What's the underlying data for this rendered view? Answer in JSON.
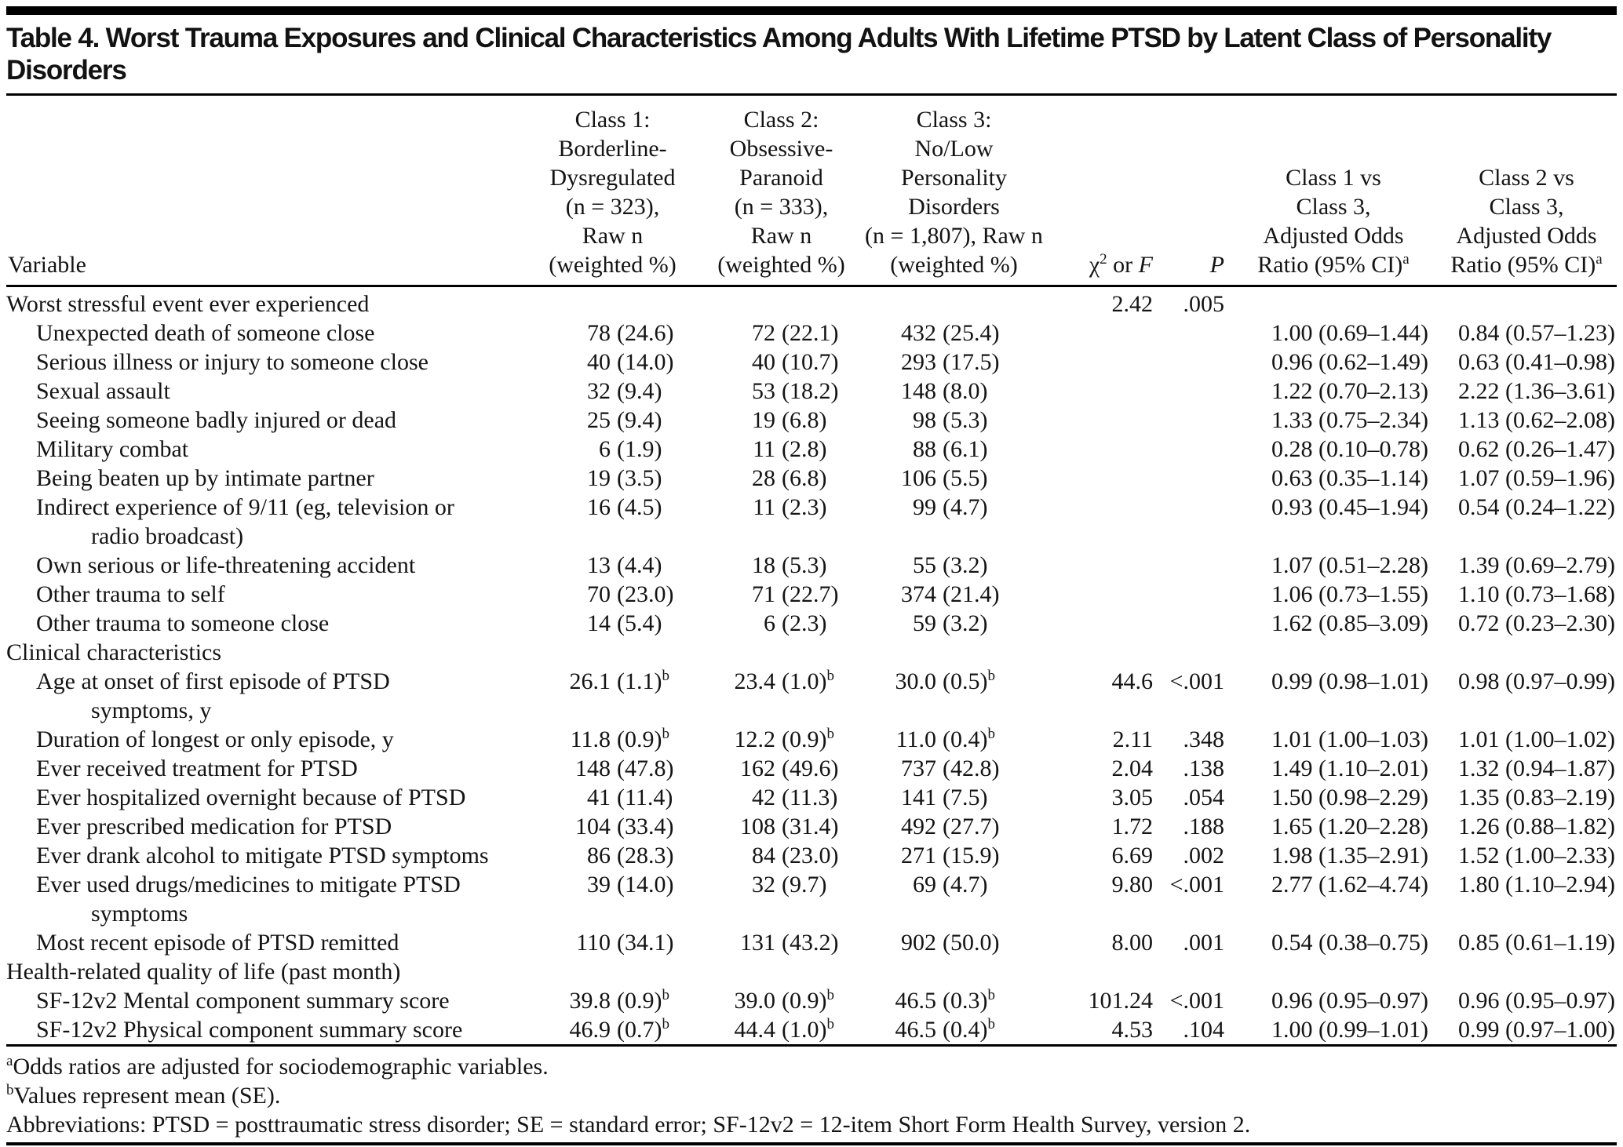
{
  "title": "Table 4. Worst Trauma Exposures and Clinical Characteristics Among Adults With Lifetime PTSD by Latent Class of Personality Disorders",
  "colors": {
    "rule": "#000000",
    "text": "#141414",
    "background": "#ffffff"
  },
  "header": {
    "variable": "Variable",
    "class1_lines": [
      "Class 1:",
      "Borderline-",
      "Dysregulated",
      "(n = 323),",
      "Raw n",
      "(weighted %)"
    ],
    "class2_lines": [
      "Class 2:",
      "Obsessive-",
      "Paranoid",
      "(n = 333),",
      "Raw n",
      "(weighted %)"
    ],
    "class3_lines": [
      "Class 3:",
      "No/Low",
      "Personality",
      "Disorders",
      "(n = 1,807), Raw n",
      "(weighted %)"
    ],
    "chi": {
      "base": "χ",
      "sup": "2",
      "rest": " or ",
      "f": "F"
    },
    "p": "P",
    "or1_lines": [
      "Class 1 vs",
      "Class 3,",
      "Adjusted Odds",
      "Ratio (95% CI)"
    ],
    "or2_lines": [
      "Class 2 vs",
      "Class 3,",
      "Adjusted Odds",
      "Ratio (95% CI)"
    ],
    "or_sup": "a"
  },
  "rows": [
    {
      "label": "Worst stressful event ever experienced",
      "indent": 0,
      "chi": "2.42",
      "p": ".005"
    },
    {
      "label": "Unexpected death of someone close",
      "indent": 1,
      "c1": [
        "78",
        "(24.6)"
      ],
      "c2": [
        "72",
        "(22.1)"
      ],
      "c3": [
        "432",
        "(25.4)"
      ],
      "or1": "1.00 (0.69–1.44)",
      "or2": "0.84 (0.57–1.23)"
    },
    {
      "label": "Serious illness or injury to someone close",
      "indent": 1,
      "c1": [
        "40",
        "(14.0)"
      ],
      "c2": [
        "40",
        "(10.7)"
      ],
      "c3": [
        "293",
        "(17.5)"
      ],
      "or1": "0.96 (0.62–1.49)",
      "or2": "0.63 (0.41–0.98)"
    },
    {
      "label": "Sexual assault",
      "indent": 1,
      "c1": [
        "32",
        "(9.4)"
      ],
      "c2": [
        "53",
        "(18.2)"
      ],
      "c3": [
        "148",
        "(8.0)"
      ],
      "or1": "1.22 (0.70–2.13)",
      "or2": "2.22 (1.36–3.61)"
    },
    {
      "label": "Seeing someone badly injured or dead",
      "indent": 1,
      "c1": [
        "25",
        "(9.4)"
      ],
      "c2": [
        "19",
        "(6.8)"
      ],
      "c3": [
        "98",
        "(5.3)"
      ],
      "or1": "1.33 (0.75–2.34)",
      "or2": "1.13 (0.62–2.08)"
    },
    {
      "label": "Military combat",
      "indent": 1,
      "c1": [
        "6",
        "(1.9)"
      ],
      "c2": [
        "11",
        "(2.8)"
      ],
      "c3": [
        "88",
        "(6.1)"
      ],
      "or1": "0.28 (0.10–0.78)",
      "or2": "0.62 (0.26–1.47)"
    },
    {
      "label": "Being beaten up by intimate partner",
      "indent": 1,
      "c1": [
        "19",
        "(3.5)"
      ],
      "c2": [
        "28",
        "(6.8)"
      ],
      "c3": [
        "106",
        "(5.5)"
      ],
      "or1": "0.63 (0.35–1.14)",
      "or2": "1.07 (0.59–1.96)"
    },
    {
      "label": "Indirect experience of 9/11 (eg, television or",
      "label2": "radio broadcast)",
      "indent": 1,
      "c1": [
        "16",
        "(4.5)"
      ],
      "c2": [
        "11",
        "(2.3)"
      ],
      "c3": [
        "99",
        "(4.7)"
      ],
      "or1": "0.93 (0.45–1.94)",
      "or2": "0.54 (0.24–1.22)"
    },
    {
      "label": "Own serious or life-threatening accident",
      "indent": 1,
      "c1": [
        "13",
        "(4.4)"
      ],
      "c2": [
        "18",
        "(5.3)"
      ],
      "c3": [
        "55",
        "(3.2)"
      ],
      "or1": "1.07 (0.51–2.28)",
      "or2": "1.39 (0.69–2.79)"
    },
    {
      "label": "Other trauma to self",
      "indent": 1,
      "c1": [
        "70",
        "(23.0)"
      ],
      "c2": [
        "71",
        "(22.7)"
      ],
      "c3": [
        "374",
        "(21.4)"
      ],
      "or1": "1.06 (0.73–1.55)",
      "or2": "1.10 (0.73–1.68)"
    },
    {
      "label": "Other trauma to someone close",
      "indent": 1,
      "c1": [
        "14",
        "(5.4)"
      ],
      "c2": [
        "6",
        "(2.3)"
      ],
      "c3": [
        "59",
        "(3.2)"
      ],
      "or1": "1.62 (0.85–3.09)",
      "or2": "0.72 (0.23–2.30)"
    },
    {
      "label": "Clinical characteristics",
      "indent": 0
    },
    {
      "label": "Age at onset of first episode of PTSD",
      "label2": "symptoms, y",
      "indent": 1,
      "sup": "b",
      "c1": [
        "26.1",
        "(1.1)"
      ],
      "c2": [
        "23.4",
        "(1.0)"
      ],
      "c3": [
        "30.0",
        "(0.5)"
      ],
      "chi": "44.6",
      "p": "<.001",
      "or1": "0.99 (0.98–1.01)",
      "or2": "0.98 (0.97–0.99)"
    },
    {
      "label": "Duration of longest or only episode, y",
      "indent": 1,
      "sup": "b",
      "c1": [
        "11.8",
        "(0.9)"
      ],
      "c2": [
        "12.2",
        "(0.9)"
      ],
      "c3": [
        "11.0",
        "(0.4)"
      ],
      "chi": "2.11",
      "p": ".348",
      "or1": "1.01 (1.00–1.03)",
      "or2": "1.01 (1.00–1.02)"
    },
    {
      "label": "Ever received treatment for PTSD",
      "indent": 1,
      "c1": [
        "148",
        "(47.8)"
      ],
      "c2": [
        "162",
        "(49.6)"
      ],
      "c3": [
        "737",
        "(42.8)"
      ],
      "chi": "2.04",
      "p": ".138",
      "or1": "1.49 (1.10–2.01)",
      "or2": "1.32 (0.94–1.87)"
    },
    {
      "label": "Ever hospitalized overnight because of PTSD",
      "indent": 1,
      "c1": [
        "41",
        "(11.4)"
      ],
      "c2": [
        "42",
        "(11.3)"
      ],
      "c3": [
        "141",
        "(7.5)"
      ],
      "chi": "3.05",
      "p": ".054",
      "or1": "1.50 (0.98–2.29)",
      "or2": "1.35 (0.83–2.19)"
    },
    {
      "label": "Ever prescribed medication for PTSD",
      "indent": 1,
      "c1": [
        "104",
        "(33.4)"
      ],
      "c2": [
        "108",
        "(31.4)"
      ],
      "c3": [
        "492",
        "(27.7)"
      ],
      "chi": "1.72",
      "p": ".188",
      "or1": "1.65 (1.20–2.28)",
      "or2": "1.26 (0.88–1.82)"
    },
    {
      "label": "Ever drank alcohol to mitigate PTSD symptoms",
      "indent": 1,
      "c1": [
        "86",
        "(28.3)"
      ],
      "c2": [
        "84",
        "(23.0)"
      ],
      "c3": [
        "271",
        "(15.9)"
      ],
      "chi": "6.69",
      "p": ".002",
      "or1": "1.98 (1.35–2.91)",
      "or2": "1.52 (1.00–2.33)"
    },
    {
      "label": "Ever used drugs/medicines to mitigate PTSD",
      "label2": "symptoms",
      "indent": 1,
      "c1": [
        "39",
        "(14.0)"
      ],
      "c2": [
        "32",
        "(9.7)"
      ],
      "c3": [
        "69",
        "(4.7)"
      ],
      "chi": "9.80",
      "p": "<.001",
      "or1": "2.77 (1.62–4.74)",
      "or2": "1.80 (1.10–2.94)"
    },
    {
      "label": "Most recent episode of PTSD remitted",
      "indent": 1,
      "c1": [
        "110",
        "(34.1)"
      ],
      "c2": [
        "131",
        "(43.2)"
      ],
      "c3": [
        "902",
        "(50.0)"
      ],
      "chi": "8.00",
      "p": ".001",
      "or1": "0.54 (0.38–0.75)",
      "or2": "0.85 (0.61–1.19)"
    },
    {
      "label": "Health-related quality of life (past month)",
      "indent": 0
    },
    {
      "label": "SF-12v2 Mental component summary score",
      "indent": 1,
      "sup": "b",
      "c1": [
        "39.8",
        "(0.9)"
      ],
      "c2": [
        "39.0",
        "(0.9)"
      ],
      "c3": [
        "46.5",
        "(0.3)"
      ],
      "chi": "101.24",
      "p": "<.001",
      "or1": "0.96 (0.95–0.97)",
      "or2": "0.96 (0.95–0.97)"
    },
    {
      "label": "SF-12v2 Physical component summary score",
      "indent": 1,
      "sup": "b",
      "c1": [
        "46.9",
        "(0.7)"
      ],
      "c2": [
        "44.4",
        "(1.0)"
      ],
      "c3": [
        "46.5",
        "(0.4)"
      ],
      "chi": "4.53",
      "p": ".104",
      "or1": "1.00 (0.99–1.01)",
      "or2": "0.99 (0.97–1.00)"
    }
  ],
  "footnotes": {
    "fn_a_sup": "a",
    "fn_a": "Odds ratios are adjusted for sociodemographic variables.",
    "fn_b_sup": "b",
    "fn_b": "Values represent mean (SE).",
    "abbreviations": "Abbreviations: PTSD = posttraumatic stress disorder; SE = standard error; SF-12v2 = 12-item Short Form Health Survey, version 2."
  }
}
